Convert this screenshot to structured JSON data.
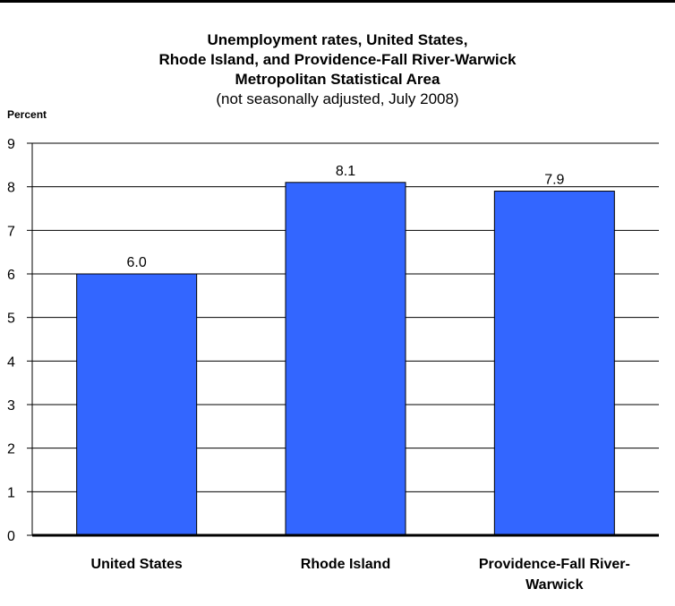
{
  "chart_data": {
    "type": "bar",
    "title_lines": [
      "Unemployment rates, United States,",
      "Rhode Island, and Providence-Fall River-Warwick",
      "Metropolitan Statistical Area"
    ],
    "subtitle": "(not seasonally adjusted, July 2008)",
    "ylabel": "Percent",
    "xlabel": "",
    "ylim": [
      0,
      9
    ],
    "yticks": [
      "0",
      "1",
      "2",
      "3",
      "4",
      "5",
      "6",
      "7",
      "8",
      "9"
    ],
    "grid": true,
    "legend": "none",
    "categories": [
      [
        "United States"
      ],
      [
        "Rhode Island"
      ],
      [
        "Providence-Fall River-",
        "Warwick"
      ]
    ],
    "values": [
      6.0,
      8.1,
      7.9
    ],
    "value_labels": [
      "6.0",
      "8.1",
      "7.9"
    ],
    "bar_color": "#3366ff",
    "bar_edge_color": "#000000"
  }
}
